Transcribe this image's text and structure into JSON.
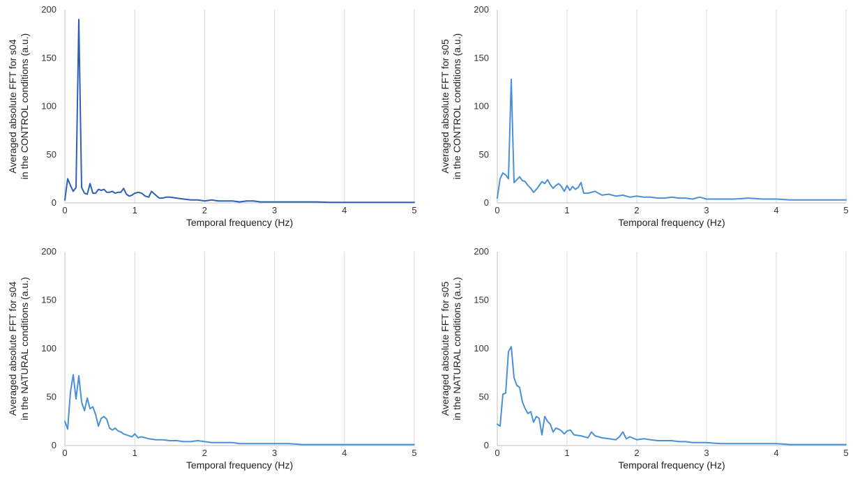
{
  "chart_data": [
    {
      "type": "line",
      "xlabel": "Temporal frequency (Hz)",
      "ylabel_lines": [
        "Averaged absolute FFT for s04",
        "in the CONTROL conditions (a.u.)"
      ],
      "xlim": [
        0,
        5
      ],
      "ylim": [
        0,
        200
      ],
      "xticks": [
        "0",
        "1",
        "2",
        "3",
        "4",
        "5"
      ],
      "yticks": [
        "0",
        "50",
        "100",
        "150",
        "200"
      ],
      "grid": "vertical",
      "color": "#2f5fb3",
      "series": [
        {
          "x": [
            0,
            0.04,
            0.08,
            0.12,
            0.16,
            0.2,
            0.24,
            0.28,
            0.32,
            0.36,
            0.4,
            0.44,
            0.48,
            0.52,
            0.56,
            0.6,
            0.64,
            0.68,
            0.72,
            0.76,
            0.8,
            0.84,
            0.88,
            0.92,
            0.96,
            1.0,
            1.05,
            1.1,
            1.15,
            1.2,
            1.24,
            1.3,
            1.35,
            1.4,
            1.45,
            1.5,
            1.6,
            1.7,
            1.8,
            1.9,
            2.0,
            2.1,
            2.2,
            2.3,
            2.4,
            2.5,
            2.6,
            2.7,
            2.8,
            2.9,
            3.0,
            3.2,
            3.4,
            3.6,
            3.8,
            4.0,
            4.2,
            4.4,
            4.6,
            4.8,
            5.0
          ],
          "y": [
            3,
            25,
            18,
            12,
            16,
            190,
            16,
            10,
            9,
            20,
            10,
            10,
            14,
            13,
            14,
            11,
            11,
            12,
            10,
            11,
            11,
            15,
            9,
            7,
            8,
            10,
            11,
            10,
            7,
            6,
            12,
            8,
            5,
            5,
            6,
            6,
            5,
            4,
            3,
            3,
            2,
            3,
            2,
            2,
            2,
            1,
            2,
            2,
            1,
            1,
            1,
            1,
            1,
            1,
            0.5,
            0.5,
            0.5,
            0.5,
            0.5,
            0.5,
            0.5
          ]
        }
      ]
    },
    {
      "type": "line",
      "xlabel": "Temporal frequency (Hz)",
      "ylabel_lines": [
        "Averaged absolute FFT for s05",
        "in the CONTROL conditions (a.u.)"
      ],
      "xlim": [
        0,
        5
      ],
      "ylim": [
        0,
        200
      ],
      "xticks": [
        "0",
        "1",
        "2",
        "3",
        "4",
        "5"
      ],
      "yticks": [
        "0",
        "50",
        "100",
        "150",
        "200"
      ],
      "grid": "vertical",
      "color": "#4a90d6",
      "series": [
        {
          "x": [
            0,
            0.04,
            0.08,
            0.12,
            0.16,
            0.2,
            0.24,
            0.28,
            0.32,
            0.36,
            0.4,
            0.44,
            0.48,
            0.52,
            0.56,
            0.6,
            0.64,
            0.68,
            0.72,
            0.76,
            0.8,
            0.84,
            0.88,
            0.92,
            0.96,
            1.0,
            1.04,
            1.08,
            1.12,
            1.16,
            1.2,
            1.24,
            1.3,
            1.4,
            1.5,
            1.6,
            1.7,
            1.8,
            1.9,
            2.0,
            2.1,
            2.2,
            2.3,
            2.4,
            2.5,
            2.6,
            2.7,
            2.8,
            2.9,
            3.0,
            3.2,
            3.4,
            3.6,
            3.8,
            4.0,
            4.2,
            4.4,
            4.6,
            4.8,
            5.0
          ],
          "y": [
            5,
            25,
            31,
            29,
            25,
            128,
            21,
            24,
            27,
            23,
            22,
            18,
            15,
            11,
            14,
            18,
            22,
            20,
            24,
            19,
            15,
            18,
            20,
            17,
            12,
            18,
            13,
            17,
            14,
            16,
            21,
            10,
            10,
            12,
            8,
            9,
            7,
            8,
            6,
            7,
            6,
            6,
            5,
            5,
            6,
            5,
            5,
            4,
            6,
            4,
            4,
            4,
            5,
            4,
            4,
            3,
            3,
            3,
            3,
            3
          ]
        }
      ]
    },
    {
      "type": "line",
      "xlabel": "Temporal frequency (Hz)",
      "ylabel_lines": [
        "Averaged absolute FFT for s04",
        "in the NATURAL conditions (a.u.)"
      ],
      "xlim": [
        0,
        5
      ],
      "ylim": [
        0,
        200
      ],
      "xticks": [
        "0",
        "1",
        "2",
        "3",
        "4",
        "5"
      ],
      "yticks": [
        "0",
        "50",
        "100",
        "150",
        "200"
      ],
      "grid": "vertical",
      "color": "#4a90d6",
      "series": [
        {
          "x": [
            0,
            0.04,
            0.08,
            0.12,
            0.16,
            0.2,
            0.24,
            0.28,
            0.32,
            0.36,
            0.4,
            0.44,
            0.48,
            0.52,
            0.56,
            0.6,
            0.64,
            0.68,
            0.72,
            0.76,
            0.8,
            0.84,
            0.88,
            0.92,
            0.96,
            1.0,
            1.05,
            1.1,
            1.2,
            1.3,
            1.4,
            1.5,
            1.6,
            1.7,
            1.8,
            1.9,
            2.0,
            2.1,
            2.2,
            2.3,
            2.4,
            2.5,
            2.6,
            2.8,
            3.0,
            3.2,
            3.4,
            3.6,
            3.8,
            4.0,
            4.2,
            4.4,
            4.6,
            4.8,
            5.0
          ],
          "y": [
            25,
            17,
            55,
            73,
            48,
            72,
            45,
            36,
            49,
            38,
            40,
            32,
            20,
            28,
            30,
            27,
            18,
            16,
            18,
            15,
            14,
            12,
            11,
            10,
            9,
            12,
            8,
            9,
            7,
            6,
            6,
            5,
            5,
            4,
            4,
            5,
            4,
            3,
            3,
            3,
            3,
            2,
            2,
            2,
            2,
            2,
            1,
            1,
            1,
            1,
            1,
            1,
            1,
            1,
            1
          ]
        }
      ]
    },
    {
      "type": "line",
      "xlabel": "Temporal frequency (Hz)",
      "ylabel_lines": [
        "Averaged absolute FFT for s05",
        "in the NATURAL conditions (a.u.)"
      ],
      "xlim": [
        0,
        5
      ],
      "ylim": [
        0,
        200
      ],
      "xticks": [
        "0",
        "1",
        "2",
        "3",
        "4",
        "5"
      ],
      "yticks": [
        "0",
        "50",
        "100",
        "150",
        "200"
      ],
      "grid": "vertical",
      "color": "#4a90d6",
      "series": [
        {
          "x": [
            0,
            0.04,
            0.08,
            0.12,
            0.16,
            0.2,
            0.24,
            0.28,
            0.32,
            0.36,
            0.4,
            0.44,
            0.48,
            0.52,
            0.56,
            0.6,
            0.64,
            0.68,
            0.72,
            0.76,
            0.8,
            0.84,
            0.88,
            0.92,
            0.96,
            1.0,
            1.05,
            1.1,
            1.2,
            1.3,
            1.35,
            1.4,
            1.5,
            1.6,
            1.7,
            1.75,
            1.8,
            1.85,
            1.9,
            2.0,
            2.1,
            2.2,
            2.3,
            2.4,
            2.5,
            2.6,
            2.7,
            2.8,
            3.0,
            3.2,
            3.4,
            3.6,
            3.8,
            4.0,
            4.2,
            4.4,
            4.6,
            4.8,
            5.0
          ],
          "y": [
            22,
            20,
            53,
            54,
            97,
            102,
            70,
            62,
            60,
            45,
            38,
            33,
            35,
            24,
            30,
            28,
            11,
            30,
            25,
            22,
            14,
            18,
            17,
            15,
            12,
            15,
            16,
            11,
            10,
            8,
            14,
            10,
            8,
            7,
            6,
            9,
            14,
            7,
            9,
            6,
            7,
            6,
            5,
            5,
            5,
            4,
            4,
            3,
            3,
            2,
            2,
            2,
            2,
            2,
            1,
            1,
            1,
            1,
            1
          ]
        }
      ]
    }
  ]
}
